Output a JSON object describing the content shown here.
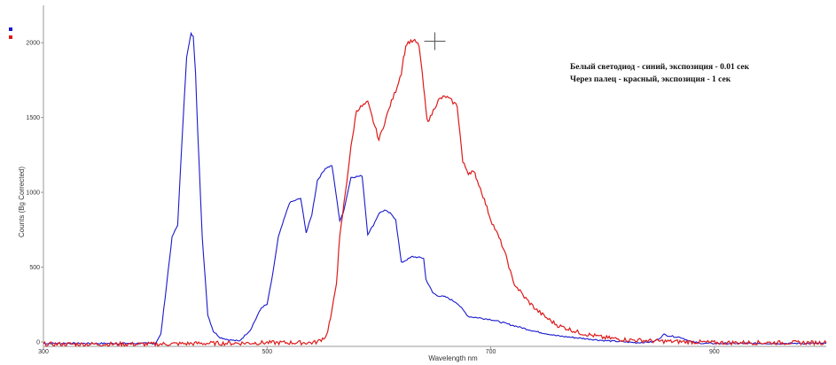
{
  "chart_data": {
    "type": "line",
    "title": "",
    "xlabel": "Wavelength nm",
    "ylabel": "Counts (Bg Corrected)",
    "xlim": [
      300,
      1000
    ],
    "ylim": [
      -30,
      2250
    ],
    "x_ticks": [
      300,
      500,
      700,
      900
    ],
    "y_ticks": [
      0,
      500,
      1000,
      1500,
      2000
    ],
    "grid": false,
    "legend_position": "top-left",
    "annotations": [
      "Белый светодиод - синий, экспозиция - 0.01 сек",
      "Через палец - красный, экспозиция - 1 сек"
    ],
    "cursor_marker": {
      "x": 650,
      "y": 2010
    },
    "series": [
      {
        "color": "#1a1acc",
        "x": [
          300,
          400,
          405,
          415,
          420,
          425,
          428,
          432,
          434,
          436,
          438,
          442,
          447,
          452,
          458,
          465,
          475,
          485,
          495,
          500,
          505,
          510,
          520,
          530,
          535,
          540,
          545,
          552,
          558,
          565,
          568,
          575,
          585,
          590,
          595,
          600,
          605,
          610,
          615,
          620,
          625,
          630,
          640,
          642,
          648,
          652,
          660,
          670,
          680,
          700,
          720,
          740,
          760,
          800,
          830,
          845,
          850,
          855,
          860,
          870,
          880,
          890,
          1000
        ],
        "values": [
          -10,
          -10,
          50,
          700,
          780,
          1500,
          1900,
          2060,
          2040,
          1800,
          1400,
          700,
          180,
          70,
          30,
          15,
          5,
          80,
          230,
          250,
          450,
          700,
          930,
          960,
          730,
          850,
          1080,
          1160,
          1180,
          810,
          860,
          1100,
          1110,
          720,
          780,
          860,
          880,
          860,
          820,
          530,
          550,
          570,
          560,
          420,
          330,
          310,
          300,
          260,
          170,
          150,
          110,
          70,
          40,
          10,
          -5,
          0,
          20,
          50,
          40,
          30,
          0,
          -10,
          -10
        ]
      },
      {
        "color": "#dd1a1a",
        "x": [
          300,
          400,
          440,
          480,
          500,
          520,
          540,
          545,
          553,
          558,
          562,
          565,
          570,
          575,
          580,
          590,
          600,
          610,
          615,
          620,
          622,
          625,
          632,
          636,
          640,
          643,
          646,
          650,
          652,
          654,
          656,
          660,
          670,
          675,
          680,
          683,
          686,
          688,
          692,
          700,
          710,
          715,
          720,
          730,
          740,
          750,
          760,
          780,
          800,
          820,
          850,
          880,
          900,
          920,
          1000
        ],
        "values": [
          -15,
          -15,
          -10,
          -8,
          -5,
          -5,
          -5,
          0,
          40,
          200,
          400,
          700,
          1000,
          1300,
          1550,
          1600,
          1350,
          1580,
          1680,
          1800,
          1900,
          2000,
          2010,
          1980,
          1700,
          1480,
          1500,
          1570,
          1600,
          1620,
          1630,
          1640,
          1580,
          1200,
          1130,
          1140,
          1120,
          1080,
          1000,
          820,
          650,
          540,
          400,
          300,
          220,
          160,
          110,
          60,
          30,
          15,
          5,
          0,
          -5,
          -5,
          -5
        ]
      }
    ]
  }
}
